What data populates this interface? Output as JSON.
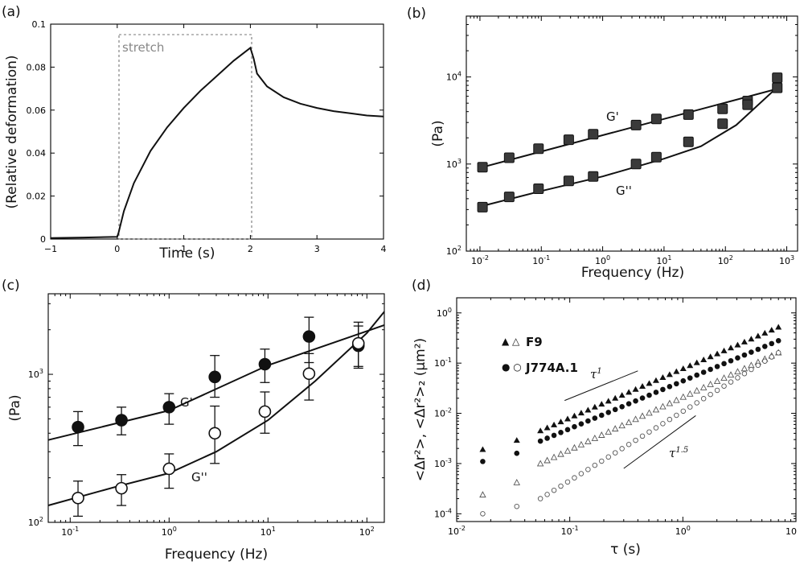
{
  "chart_data": [
    {
      "panel": "(a)",
      "type": "line",
      "xlabel": "Time (s)",
      "ylabel": "(Relative deformation)",
      "xlim": [
        -1,
        4
      ],
      "ylim": [
        0,
        0.1
      ],
      "xticks": [
        "−1",
        "0",
        "1",
        "2",
        "3",
        "4"
      ],
      "yticks": [
        "0",
        "0.02",
        "0.04",
        "0.06",
        "0.08",
        "0.1"
      ],
      "annotation": "stretch",
      "stretch_window": [
        0,
        2
      ],
      "series": [
        {
          "name": "deformation",
          "x": [
            -1,
            -0.5,
            0,
            0.02,
            0.1,
            0.25,
            0.5,
            0.75,
            1.0,
            1.25,
            1.5,
            1.75,
            2.0,
            2.05,
            2.1,
            2.25,
            2.5,
            2.75,
            3.0,
            3.25,
            3.5,
            3.75,
            4.0
          ],
          "y": [
            0.0005,
            0.0007,
            0.001,
            0.003,
            0.013,
            0.026,
            0.041,
            0.052,
            0.061,
            0.069,
            0.076,
            0.083,
            0.089,
            0.084,
            0.077,
            0.071,
            0.066,
            0.063,
            0.061,
            0.0595,
            0.0585,
            0.0575,
            0.057
          ]
        }
      ]
    },
    {
      "panel": "(b)",
      "type": "scatter",
      "xscale": "log",
      "yscale": "log",
      "xlabel": "Frequency (Hz)",
      "ylabel": "(Pa)",
      "xlim": [
        0.006,
        1500
      ],
      "ylim": [
        100,
        50000
      ],
      "xticks": [
        {
          "base": "10",
          "exp": "-2"
        },
        {
          "base": "10",
          "exp": "-1"
        },
        {
          "base": "10",
          "exp": "0"
        },
        {
          "base": "10",
          "exp": "1"
        },
        {
          "base": "10",
          "exp": "2"
        },
        {
          "base": "10",
          "exp": "3"
        }
      ],
      "yticks": [
        {
          "base": "10",
          "exp": "2"
        },
        {
          "base": "10",
          "exp": "3"
        },
        {
          "base": "10",
          "exp": "4"
        }
      ],
      "series": [
        {
          "name": "G'",
          "x": [
            0.011,
            0.03,
            0.09,
            0.28,
            0.7,
            3.5,
            7.5,
            25,
            90,
            230,
            700
          ],
          "y": [
            920,
            1180,
            1500,
            1900,
            2200,
            2800,
            3300,
            3700,
            4300,
            5300,
            7500
          ],
          "fit_x": [
            0.011,
            700
          ],
          "fit_y": [
            920,
            7300
          ]
        },
        {
          "name": "G''",
          "x": [
            0.011,
            0.03,
            0.09,
            0.28,
            0.7,
            3.5,
            7.5,
            25,
            90,
            230,
            700
          ],
          "y": [
            320,
            420,
            520,
            640,
            720,
            1000,
            1200,
            1800,
            2900,
            4800,
            9800
          ],
          "fit_x": [
            0.011,
            0.1,
            1,
            10,
            40,
            150,
            700
          ],
          "fit_y": [
            330,
            490,
            720,
            1150,
            1600,
            2800,
            7600
          ]
        }
      ]
    },
    {
      "panel": "(c)",
      "type": "scatter",
      "xscale": "log",
      "yscale": "log",
      "xlabel": "Frequency (Hz)",
      "ylabel": "(Pa)",
      "xlim": [
        0.06,
        150
      ],
      "ylim": [
        100,
        3500
      ],
      "xticks": [
        {
          "base": "10",
          "exp": "-1"
        },
        {
          "base": "10",
          "exp": "0"
        },
        {
          "base": "10",
          "exp": "1"
        },
        {
          "base": "10",
          "exp": "2"
        }
      ],
      "yticks": [
        {
          "base": "10",
          "exp": "2"
        },
        {
          "base": "10",
          "exp": "3"
        }
      ],
      "series": [
        {
          "name": "G'",
          "marker": "filled",
          "x": [
            0.12,
            0.33,
            1.0,
            2.9,
            9.3,
            26,
            82
          ],
          "y": [
            440,
            490,
            600,
            960,
            1170,
            1800,
            1560
          ],
          "err_low": [
            330,
            390,
            460,
            700,
            880,
            1200,
            1130
          ],
          "err_high": [
            560,
            600,
            740,
            1340,
            1480,
            2430,
            2120
          ],
          "fit_x": [
            0.06,
            1,
            10,
            150
          ],
          "fit_y": [
            360,
            570,
            1150,
            2150
          ]
        },
        {
          "name": "G''",
          "marker": "open",
          "x": [
            0.12,
            0.33,
            1.0,
            2.9,
            9.3,
            26,
            82
          ],
          "y": [
            146,
            170,
            230,
            400,
            560,
            1010,
            1620
          ],
          "err_low": [
            110,
            130,
            170,
            250,
            400,
            670,
            1100
          ],
          "err_high": [
            190,
            210,
            290,
            610,
            760,
            1380,
            2250
          ],
          "fit_x": [
            0.06,
            0.3,
            1,
            3,
            10,
            30,
            100,
            150
          ],
          "fit_y": [
            130,
            175,
            215,
            300,
            490,
            900,
            1900,
            2650
          ]
        }
      ]
    },
    {
      "panel": "(d)",
      "type": "scatter",
      "xscale": "log",
      "yscale": "log",
      "xlabel": "τ (s)",
      "ylabel": "<Δr²>, <Δr²>₂ (μm²)",
      "xlim": [
        0.01,
        10
      ],
      "ylim": [
        7e-05,
        2
      ],
      "xticks": [
        {
          "base": "10",
          "exp": "-2"
        },
        {
          "base": "10",
          "exp": "-1"
        },
        {
          "base": "10",
          "exp": "0"
        },
        {
          "base": "10",
          "exp": ""
        }
      ],
      "yticks": [
        {
          "base": "10",
          "exp": "-4"
        },
        {
          "base": "10",
          "exp": "-3"
        },
        {
          "base": "10",
          "exp": "-2"
        },
        {
          "base": "10",
          "exp": "-1"
        },
        {
          "base": "10",
          "exp": "0"
        }
      ],
      "legend": [
        {
          "markers": "▲ △",
          "label": "F9"
        },
        {
          "markers": "● ○",
          "label": "J774A.1"
        }
      ],
      "slope_labels": [
        {
          "base": "τ",
          "exp": "1"
        },
        {
          "base": "τ",
          "exp": "1.5"
        }
      ],
      "slope_lines": [
        {
          "x": [
            0.09,
            0.4
          ],
          "y": [
            0.018,
            0.07
          ]
        },
        {
          "x": [
            0.3,
            1.3
          ],
          "y": [
            0.0008,
            0.009
          ]
        }
      ],
      "series": [
        {
          "name": "F9 <Δr²>",
          "marker": "filled-triangle",
          "x_start": 0.055,
          "x_end": 7,
          "y_start": 0.0045,
          "slope": 0.98,
          "extra_x": [
            0.017,
            0.034
          ],
          "extra_y": [
            0.0019,
            0.0029
          ]
        },
        {
          "name": "J774A.1 <Δr²>",
          "marker": "filled-circle",
          "x_start": 0.055,
          "x_end": 7,
          "y_start": 0.0028,
          "slope": 0.95,
          "extra_x": [
            0.017,
            0.034
          ],
          "extra_y": [
            0.0011,
            0.0016
          ]
        },
        {
          "name": "F9 <Δr²>₂",
          "marker": "open-triangle",
          "x_start": 0.055,
          "x_end": 7,
          "y_start": 0.001,
          "slope": 1.05,
          "extra_x": [
            0.017,
            0.034
          ],
          "extra_y": [
            0.00024,
            0.00042
          ]
        },
        {
          "name": "J774A.1 <Δr²>₂",
          "marker": "open-circle",
          "x_start": 0.055,
          "x_end": 7,
          "y_start": 0.0002,
          "slope": 1.38,
          "extra_x": [
            0.017,
            0.034
          ],
          "extra_y": [
            0.0001,
            0.00014
          ]
        }
      ]
    }
  ]
}
